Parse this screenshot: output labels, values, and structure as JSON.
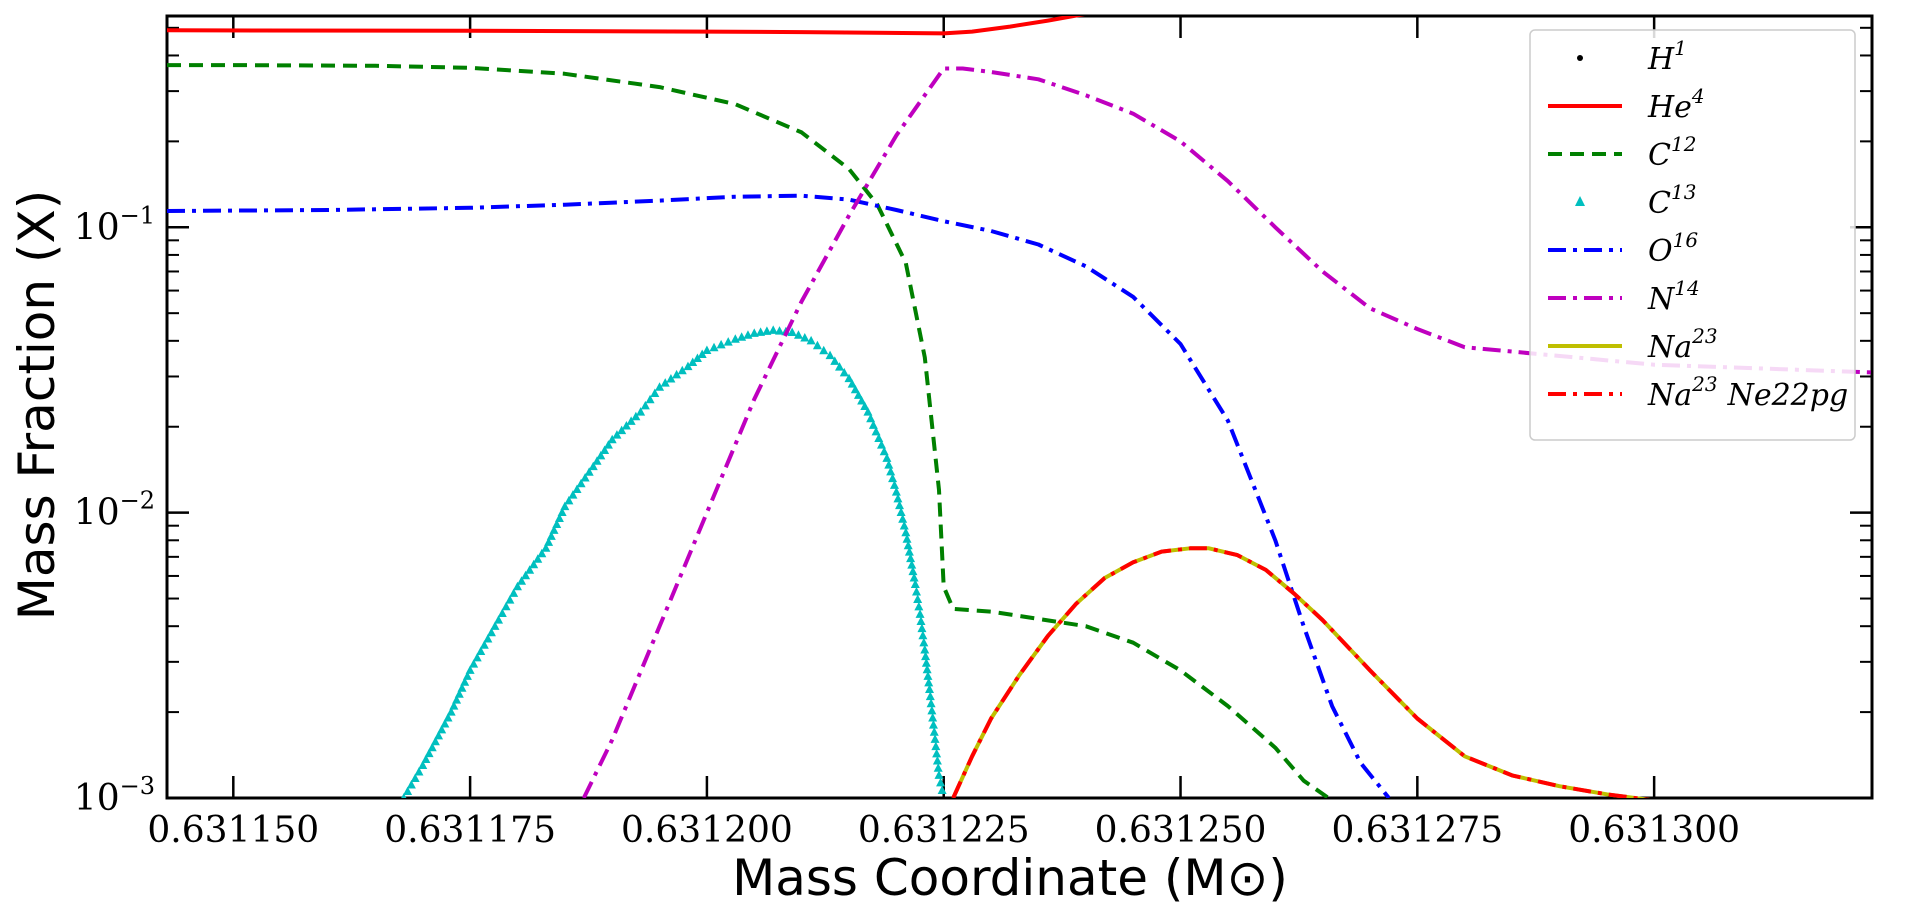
{
  "chart_data": {
    "type": "line",
    "xlabel": "Mass Coordinate (M⊙)",
    "ylabel": "Mass Fraction (X)",
    "yscale": "log",
    "xlim": [
      0.631143,
      0.631323
    ],
    "ylim": [
      0.001,
      0.55
    ],
    "x_ticks": [
      0.63115,
      0.631175,
      0.6312,
      0.631225,
      0.63125,
      0.631275,
      0.6313
    ],
    "x_tick_labels": [
      "0.631150",
      "0.631175",
      "0.631200",
      "0.631225",
      "0.631250",
      "0.631275",
      "0.631300"
    ],
    "y_ticks": [
      0.001,
      0.01,
      0.1
    ],
    "y_tick_labels": [
      {
        "base": "10",
        "exp": "−3"
      },
      {
        "base": "10",
        "exp": "−2"
      },
      {
        "base": "10",
        "exp": "−1"
      }
    ],
    "legend_position": "top-right",
    "series": [
      {
        "name": "H",
        "sup": "1",
        "color": "#000000",
        "style": "point",
        "x": [],
        "y": []
      },
      {
        "name": "He",
        "sup": "4",
        "color": "#ff0000",
        "style": "solid",
        "x": [
          0.631143,
          0.631175,
          0.6312,
          0.63121,
          0.631225,
          0.631228,
          0.631232,
          0.631236,
          0.63124
        ],
        "y": [
          0.49,
          0.488,
          0.485,
          0.483,
          0.478,
          0.485,
          0.505,
          0.53,
          0.56
        ]
      },
      {
        "name": "C",
        "sup": "12",
        "color": "#008000",
        "style": "dashed",
        "x": [
          0.631143,
          0.63115,
          0.631165,
          0.631175,
          0.631185,
          0.631195,
          0.631203,
          0.63121,
          0.631215,
          0.631218,
          0.631221,
          0.631223,
          0.6312245,
          0.631225,
          0.631226,
          0.63123,
          0.63124,
          0.631245,
          0.63125,
          0.631255,
          0.63126,
          0.631263,
          0.631266
        ],
        "y": [
          0.37,
          0.37,
          0.368,
          0.362,
          0.345,
          0.31,
          0.27,
          0.215,
          0.16,
          0.12,
          0.075,
          0.035,
          0.012,
          0.0055,
          0.0046,
          0.0045,
          0.004,
          0.0035,
          0.0028,
          0.0021,
          0.0015,
          0.00115,
          0.00098
        ]
      },
      {
        "name": "C",
        "sup": "13",
        "color": "#00bfbf",
        "style": "triangles",
        "x": [
          0.631168,
          0.63117,
          0.631173,
          0.631175,
          0.631178,
          0.63118,
          0.631183,
          0.631185,
          0.631188,
          0.63119,
          0.631193,
          0.631195,
          0.631198,
          0.6312,
          0.631203,
          0.631205,
          0.631207,
          0.631209,
          0.631211,
          0.631213,
          0.631215,
          0.631217,
          0.631219,
          0.63122,
          0.631221,
          0.631222,
          0.6312225,
          0.631223,
          0.6312235,
          0.631224,
          0.6312245,
          0.631225
        ],
        "y": [
          0.001,
          0.0013,
          0.002,
          0.0028,
          0.0042,
          0.0055,
          0.0075,
          0.0105,
          0.0145,
          0.018,
          0.0225,
          0.0275,
          0.0325,
          0.037,
          0.0405,
          0.0425,
          0.0435,
          0.0428,
          0.04,
          0.0355,
          0.0295,
          0.0225,
          0.0155,
          0.0118,
          0.0085,
          0.0056,
          0.0044,
          0.0033,
          0.0024,
          0.0017,
          0.0012,
          0.001
        ]
      },
      {
        "name": "O",
        "sup": "16",
        "color": "#0000ff",
        "style": "dashdot",
        "x": [
          0.631143,
          0.63116,
          0.631175,
          0.631185,
          0.631195,
          0.631203,
          0.63121,
          0.631215,
          0.63122,
          0.631225,
          0.63123,
          0.631235,
          0.63124,
          0.631245,
          0.63125,
          0.631255,
          0.63126,
          0.631263,
          0.631266,
          0.631269,
          0.631272
        ],
        "y": [
          0.114,
          0.115,
          0.117,
          0.12,
          0.124,
          0.128,
          0.129,
          0.125,
          0.115,
          0.105,
          0.097,
          0.087,
          0.073,
          0.057,
          0.039,
          0.021,
          0.008,
          0.004,
          0.0021,
          0.00133,
          0.001
        ]
      },
      {
        "name": "N",
        "sup": "14",
        "color": "#bf00bf",
        "style": "dashdot",
        "x": [
          0.631187,
          0.63119,
          0.631195,
          0.6312,
          0.631205,
          0.63121,
          0.631215,
          0.63122,
          0.631225,
          0.631227,
          0.63123,
          0.631235,
          0.63124,
          0.631245,
          0.63125,
          0.631255,
          0.63126,
          0.631265,
          0.63127,
          0.631275,
          0.63128,
          0.6313,
          0.631323
        ],
        "y": [
          0.001,
          0.0016,
          0.004,
          0.01,
          0.025,
          0.055,
          0.11,
          0.21,
          0.36,
          0.36,
          0.35,
          0.33,
          0.29,
          0.25,
          0.2,
          0.145,
          0.1,
          0.07,
          0.052,
          0.044,
          0.038,
          0.033,
          0.031
        ]
      },
      {
        "name": "Na",
        "sup": "23",
        "color": "#bfbf00",
        "style": "solid",
        "x": [
          0.631226,
          0.631228,
          0.63123,
          0.631233,
          0.631236,
          0.631239,
          0.631242,
          0.631245,
          0.631248,
          0.631251,
          0.631253,
          0.631256,
          0.631259,
          0.631262,
          0.631265,
          0.63127,
          0.631275,
          0.63128,
          0.631285,
          0.63129,
          0.631295,
          0.6313
        ],
        "y": [
          0.001,
          0.0014,
          0.0019,
          0.0027,
          0.0037,
          0.0048,
          0.0059,
          0.0067,
          0.0073,
          0.0075,
          0.0075,
          0.0071,
          0.0063,
          0.0052,
          0.0042,
          0.0028,
          0.0019,
          0.0014,
          0.0012,
          0.0011,
          0.00103,
          0.00098
        ]
      },
      {
        "name": "Na",
        "sup": "23",
        "extra": "Ne22pg",
        "color": "#ff0000",
        "style": "dashdot",
        "x": [
          0.631226,
          0.631228,
          0.63123,
          0.631233,
          0.631236,
          0.631239,
          0.631242,
          0.631245,
          0.631248,
          0.631251,
          0.631253,
          0.631256,
          0.631259,
          0.631262,
          0.631265,
          0.63127,
          0.631275,
          0.63128,
          0.631285,
          0.63129,
          0.631295,
          0.6313
        ],
        "y": [
          0.001,
          0.0014,
          0.0019,
          0.0027,
          0.0037,
          0.0048,
          0.0059,
          0.0067,
          0.0073,
          0.0075,
          0.0075,
          0.0071,
          0.0063,
          0.0052,
          0.0042,
          0.0028,
          0.0019,
          0.0014,
          0.0012,
          0.0011,
          0.00103,
          0.00098
        ]
      }
    ]
  }
}
